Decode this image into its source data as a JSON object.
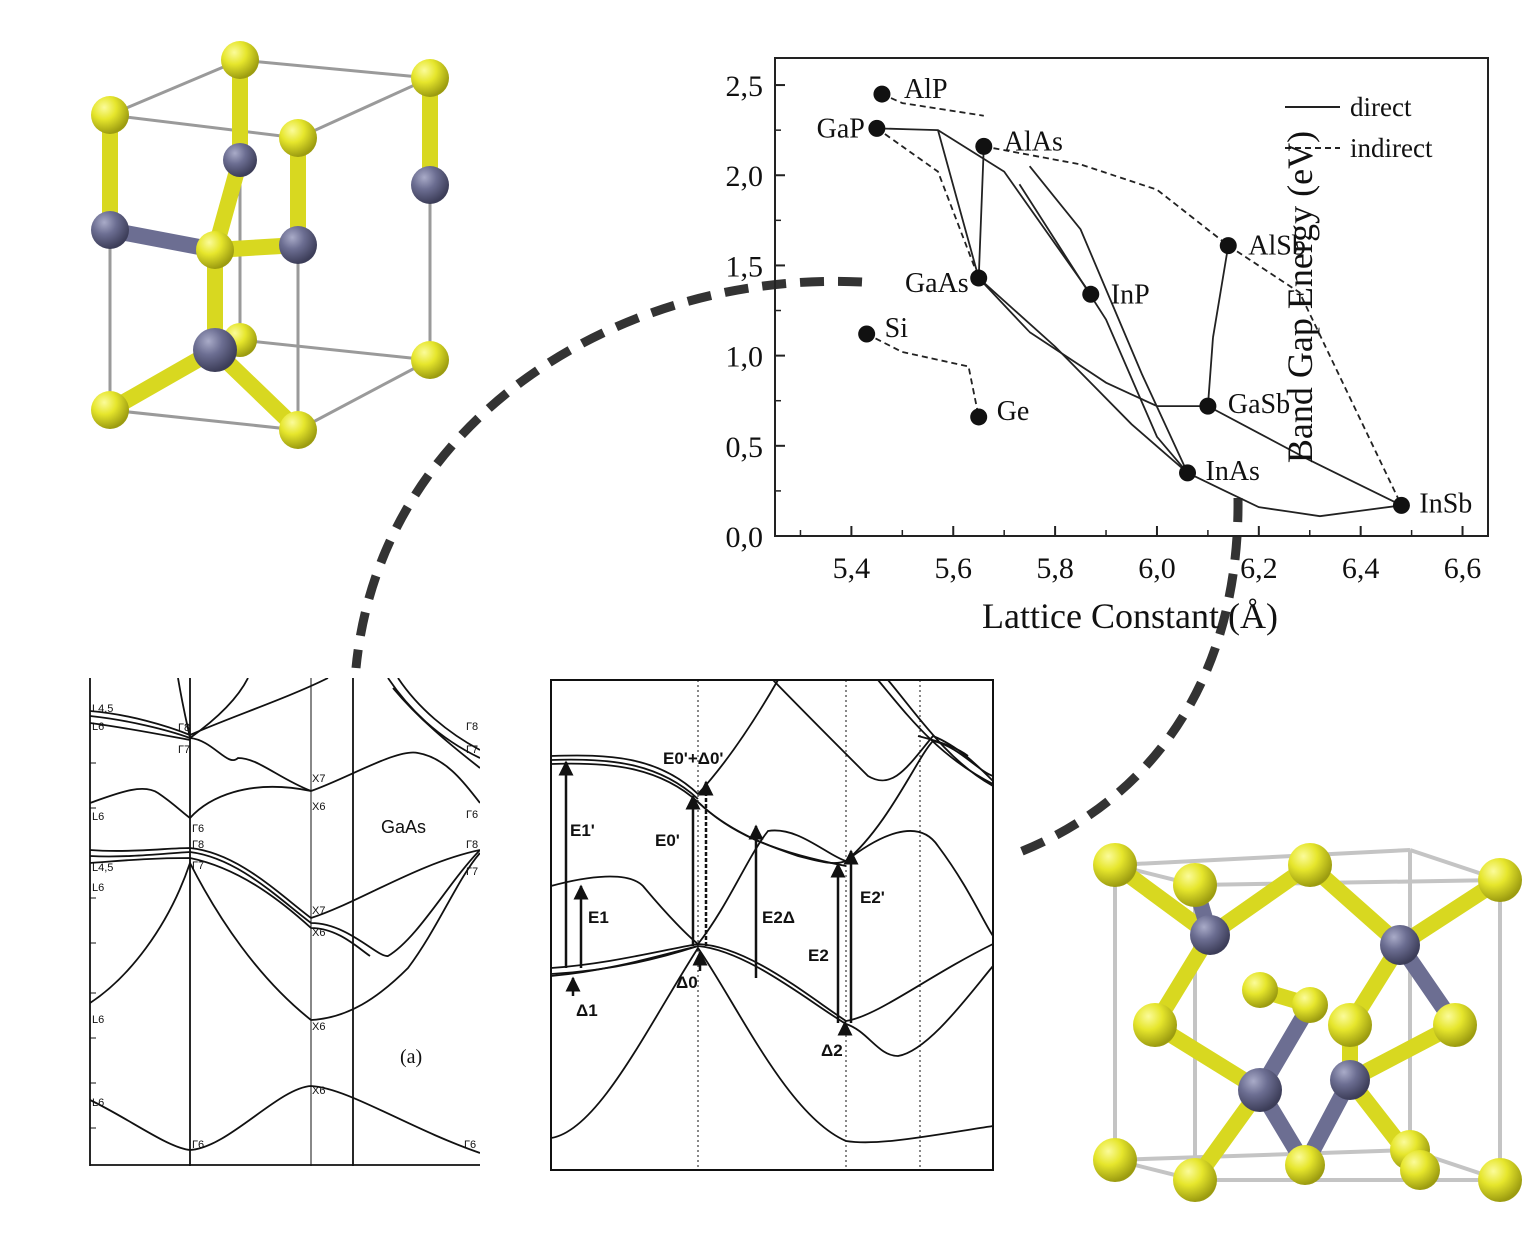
{
  "colors": {
    "atom_yellow": "#E5E52A",
    "atom_slate": "#6C6E92",
    "bond_yellow": "#D8D820",
    "bond_slate": "#6C6E92",
    "cell_edge": "#9a9a9a",
    "connector": "#333333"
  },
  "chart_data": {
    "type": "scatter",
    "xlabel": "Lattice Constant (Å)",
    "ylabel": "Band Gap Energy (eV)",
    "xlim": [
      5.25,
      6.65
    ],
    "ylim": [
      0.0,
      2.65
    ],
    "xticks": [
      "5,4",
      "5,6",
      "5,8",
      "6,0",
      "6,2",
      "6,4",
      "6,6"
    ],
    "xtick_values": [
      5.4,
      5.6,
      5.8,
      6.0,
      6.2,
      6.4,
      6.6
    ],
    "yticks": [
      "0,0",
      "0,5",
      "1,0",
      "1,5",
      "2,0",
      "2,5"
    ],
    "ytick_values": [
      0,
      0.5,
      1.0,
      1.5,
      2.0,
      2.5
    ],
    "legend": {
      "position": "top-right",
      "entries": [
        {
          "label": "direct",
          "style": "solid"
        },
        {
          "label": "indirect",
          "style": "dashed"
        }
      ]
    },
    "points": [
      {
        "name": "AlP",
        "x": 5.46,
        "y": 2.45
      },
      {
        "name": "GaP",
        "x": 5.45,
        "y": 2.26
      },
      {
        "name": "AlAs",
        "x": 5.66,
        "y": 2.16
      },
      {
        "name": "AlSb",
        "x": 6.14,
        "y": 1.61
      },
      {
        "name": "GaAs",
        "x": 5.65,
        "y": 1.43
      },
      {
        "name": "InP",
        "x": 5.87,
        "y": 1.34
      },
      {
        "name": "Si",
        "x": 5.43,
        "y": 1.12
      },
      {
        "name": "GaSb",
        "x": 6.1,
        "y": 0.72
      },
      {
        "name": "Ge",
        "x": 5.65,
        "y": 0.66
      },
      {
        "name": "InAs",
        "x": 6.06,
        "y": 0.35
      },
      {
        "name": "InSb",
        "x": 6.48,
        "y": 0.17
      }
    ],
    "curves": [
      {
        "style": "dashed",
        "points": [
          [
            5.46,
            2.45
          ],
          [
            5.5,
            2.4
          ],
          [
            5.66,
            2.33
          ]
        ]
      },
      {
        "style": "dashed",
        "points": [
          [
            5.45,
            2.26
          ],
          [
            5.5,
            2.16
          ],
          [
            5.57,
            2.02
          ],
          [
            5.65,
            1.43
          ]
        ]
      },
      {
        "style": "dashed",
        "points": [
          [
            5.66,
            2.16
          ],
          [
            5.85,
            2.06
          ],
          [
            6.0,
            1.92
          ],
          [
            6.14,
            1.61
          ],
          [
            6.28,
            1.35
          ],
          [
            6.48,
            0.17
          ]
        ]
      },
      {
        "style": "dashed",
        "points": [
          [
            5.43,
            1.12
          ],
          [
            5.5,
            1.02
          ],
          [
            5.63,
            0.94
          ],
          [
            5.65,
            0.66
          ]
        ]
      },
      {
        "style": "solid",
        "points": [
          [
            5.45,
            2.26
          ],
          [
            5.57,
            2.25
          ],
          [
            5.7,
            2.02
          ],
          [
            5.87,
            1.34
          ]
        ]
      },
      {
        "style": "solid",
        "points": [
          [
            5.66,
            2.16
          ],
          [
            5.65,
            1.43
          ]
        ]
      },
      {
        "style": "solid",
        "points": [
          [
            5.57,
            2.25
          ],
          [
            5.65,
            1.43
          ],
          [
            5.75,
            1.13
          ],
          [
            5.9,
            0.85
          ],
          [
            6.0,
            0.72
          ],
          [
            6.1,
            0.72
          ]
        ]
      },
      {
        "style": "solid",
        "points": [
          [
            5.65,
            1.43
          ],
          [
            5.8,
            1.05
          ],
          [
            5.95,
            0.62
          ],
          [
            6.06,
            0.35
          ]
        ]
      },
      {
        "style": "solid",
        "points": [
          [
            5.75,
            2.05
          ],
          [
            5.85,
            1.7
          ],
          [
            5.97,
            0.9
          ],
          [
            6.06,
            0.35
          ]
        ]
      },
      {
        "style": "solid",
        "points": [
          [
            5.73,
            1.95
          ],
          [
            5.9,
            1.2
          ],
          [
            6.0,
            0.55
          ],
          [
            6.06,
            0.35
          ]
        ]
      },
      {
        "style": "solid",
        "points": [
          [
            6.1,
            0.72
          ],
          [
            6.11,
            1.1
          ],
          [
            6.14,
            1.61
          ]
        ]
      },
      {
        "style": "solid",
        "points": [
          [
            6.1,
            0.72
          ],
          [
            6.3,
            0.42
          ],
          [
            6.48,
            0.17
          ]
        ]
      },
      {
        "style": "solid",
        "points": [
          [
            6.06,
            0.35
          ],
          [
            6.2,
            0.16
          ],
          [
            6.32,
            0.11
          ],
          [
            6.48,
            0.17
          ]
        ]
      }
    ]
  },
  "left_band_panel": {
    "material": "GaAs",
    "tag": "(a)",
    "symmetry_labels": {
      "l45_top": "L4,5",
      "l6_top": "L6",
      "gamma8_top": "Γ8",
      "gamma7_top": "Γ7",
      "l6_mid": "L6",
      "gamma6": "Γ6",
      "x7_top": "X7",
      "x6_top": "X6",
      "l45_mid": "L4,5",
      "l6_mid2": "L6",
      "gamma8_mid": "Γ8",
      "gamma7_mid": "Γ7",
      "x7_mid": "X7",
      "x6_mid": "X6",
      "l6_low": "L6",
      "x6_low": "X6",
      "l6_bottom": "L6",
      "gamma6_bottom": "Γ6",
      "x6_bottom": "X6",
      "gamma8_r": "Γ8",
      "gamma7_r": "Γ7",
      "gamma6_r": "Γ6",
      "gamma8_r2": "Γ8",
      "gamma7_r2": "Γ7",
      "gamma6_r3": "Γ6"
    }
  },
  "right_band_panel": {
    "transitions": {
      "e0p_plus": "E0'+Δ0'",
      "e1p": "E1'",
      "e0p": "E0'",
      "e2d": "E2Δ",
      "e2p": "E2'",
      "e1": "E1",
      "e2": "E2",
      "d1": "Δ1",
      "d0": "Δ0",
      "d2": "Δ2"
    }
  }
}
